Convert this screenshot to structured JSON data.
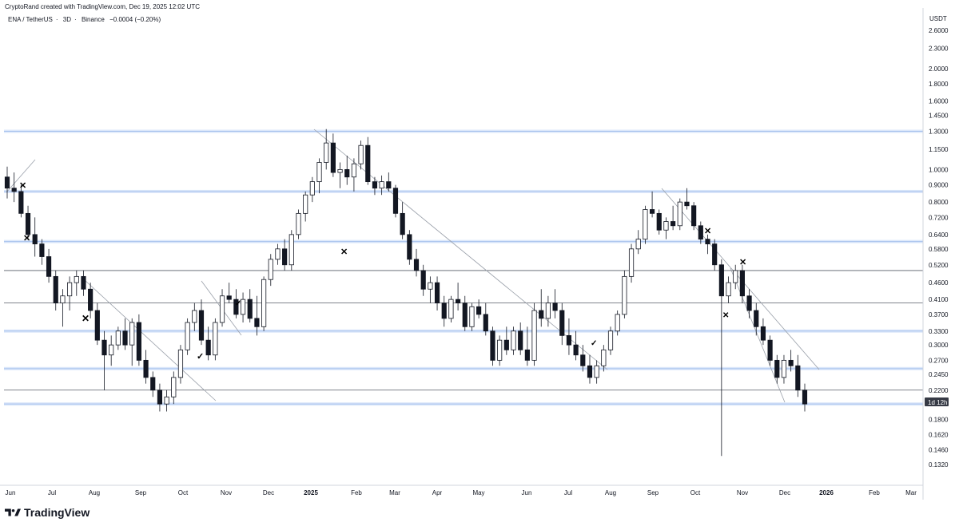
{
  "header": {
    "attribution": "CryptoRand created with TradingView.com, Dec 19, 2025 12:02 UTC",
    "pair": "ENA / TetherUS",
    "interval": "3D",
    "exchange": "Binance",
    "change": "−0.0004 (−0.20%)"
  },
  "axis": {
    "currency": "USDT",
    "countdown_badge": "1d 12h"
  },
  "brand": {
    "name": "TradingView"
  },
  "colors": {
    "up_candle": "#ffffff",
    "down_candle": "#131722",
    "level_line": "#a7c1ec",
    "level_glow": "#dbe7fa",
    "grey_line": "#555b66",
    "badge_bg": "#363a45"
  },
  "chart_data": {
    "type": "candlestick",
    "scale": "log",
    "ylim": [
      0.12,
      2.8
    ],
    "y_ticks": [
      "2.6000",
      "2.3000",
      "2.0000",
      "1.8000",
      "1.6000",
      "1.4500",
      "1.3000",
      "1.1500",
      "1.0000",
      "0.9000",
      "0.8000",
      "0.7200",
      "0.6400",
      "0.5800",
      "0.5200",
      "0.4600",
      "0.4100",
      "0.3700",
      "0.3300",
      "0.3000",
      "0.2700",
      "0.2450",
      "0.2200",
      "0.1800",
      "0.1620",
      "0.1460",
      "0.1320"
    ],
    "x_ticks": [
      "Jun",
      "Jul",
      "Aug",
      "Sep",
      "Oct",
      "Nov",
      "Dec",
      "2025",
      "Feb",
      "Mar",
      "Apr",
      "May",
      "Jun",
      "Jul",
      "Aug",
      "Sep",
      "Oct",
      "Nov",
      "Dec",
      "2026",
      "Feb",
      "Mar"
    ],
    "horizontal_levels_blue": [
      1.3,
      0.86,
      0.61,
      0.33,
      0.255,
      0.2
    ],
    "horizontal_levels_grey": [
      0.5,
      0.4,
      0.22
    ],
    "price_levels": [
      [
        0.95,
        1.02,
        0.82,
        0.88
      ],
      [
        0.88,
        0.98,
        0.8,
        0.86
      ],
      [
        0.86,
        0.9,
        0.72,
        0.74
      ],
      [
        0.74,
        0.78,
        0.62,
        0.64
      ],
      [
        0.64,
        0.72,
        0.55,
        0.6
      ],
      [
        0.6,
        0.62,
        0.52,
        0.55
      ],
      [
        0.55,
        0.58,
        0.46,
        0.48
      ],
      [
        0.48,
        0.5,
        0.38,
        0.4
      ],
      [
        0.4,
        0.44,
        0.34,
        0.42
      ],
      [
        0.42,
        0.48,
        0.38,
        0.46
      ],
      [
        0.46,
        0.5,
        0.42,
        0.48
      ],
      [
        0.48,
        0.5,
        0.42,
        0.44
      ],
      [
        0.44,
        0.46,
        0.36,
        0.38
      ],
      [
        0.38,
        0.4,
        0.3,
        0.31
      ],
      [
        0.31,
        0.33,
        0.22,
        0.28
      ],
      [
        0.28,
        0.32,
        0.26,
        0.3
      ],
      [
        0.3,
        0.34,
        0.29,
        0.33
      ],
      [
        0.33,
        0.36,
        0.29,
        0.3
      ],
      [
        0.3,
        0.36,
        0.26,
        0.35
      ],
      [
        0.35,
        0.37,
        0.26,
        0.27
      ],
      [
        0.27,
        0.29,
        0.23,
        0.24
      ],
      [
        0.24,
        0.25,
        0.21,
        0.22
      ],
      [
        0.22,
        0.23,
        0.19,
        0.2
      ],
      [
        0.2,
        0.22,
        0.19,
        0.21
      ],
      [
        0.21,
        0.25,
        0.2,
        0.24
      ],
      [
        0.24,
        0.3,
        0.23,
        0.29
      ],
      [
        0.29,
        0.36,
        0.28,
        0.35
      ],
      [
        0.35,
        0.4,
        0.33,
        0.38
      ],
      [
        0.38,
        0.41,
        0.3,
        0.31
      ],
      [
        0.31,
        0.34,
        0.27,
        0.28
      ],
      [
        0.28,
        0.36,
        0.27,
        0.35
      ],
      [
        0.35,
        0.44,
        0.34,
        0.42
      ],
      [
        0.42,
        0.46,
        0.4,
        0.41
      ],
      [
        0.41,
        0.44,
        0.36,
        0.37
      ],
      [
        0.37,
        0.43,
        0.35,
        0.41
      ],
      [
        0.41,
        0.44,
        0.35,
        0.36
      ],
      [
        0.36,
        0.42,
        0.32,
        0.34
      ],
      [
        0.34,
        0.48,
        0.33,
        0.47
      ],
      [
        0.47,
        0.56,
        0.45,
        0.54
      ],
      [
        0.54,
        0.6,
        0.52,
        0.58
      ],
      [
        0.58,
        0.62,
        0.5,
        0.52
      ],
      [
        0.52,
        0.66,
        0.5,
        0.64
      ],
      [
        0.64,
        0.76,
        0.62,
        0.74
      ],
      [
        0.74,
        0.86,
        0.7,
        0.84
      ],
      [
        0.84,
        0.95,
        0.8,
        0.92
      ],
      [
        0.92,
        1.08,
        0.85,
        1.05
      ],
      [
        1.05,
        1.32,
        1.0,
        1.2
      ],
      [
        1.2,
        1.28,
        0.95,
        0.98
      ],
      [
        0.98,
        1.05,
        0.88,
        1.0
      ],
      [
        1.0,
        1.1,
        0.9,
        0.95
      ],
      [
        0.95,
        1.08,
        0.86,
        1.04
      ],
      [
        1.04,
        1.22,
        1.0,
        1.18
      ],
      [
        1.18,
        1.25,
        0.9,
        0.92
      ],
      [
        0.92,
        0.95,
        0.84,
        0.88
      ],
      [
        0.88,
        0.96,
        0.84,
        0.92
      ],
      [
        0.92,
        0.98,
        0.86,
        0.88
      ],
      [
        0.88,
        0.9,
        0.72,
        0.74
      ],
      [
        0.74,
        0.8,
        0.62,
        0.64
      ],
      [
        0.64,
        0.66,
        0.52,
        0.54
      ],
      [
        0.54,
        0.58,
        0.48,
        0.5
      ],
      [
        0.5,
        0.52,
        0.42,
        0.44
      ],
      [
        0.44,
        0.48,
        0.4,
        0.46
      ],
      [
        0.46,
        0.48,
        0.38,
        0.4
      ],
      [
        0.4,
        0.42,
        0.34,
        0.36
      ],
      [
        0.36,
        0.42,
        0.35,
        0.41
      ],
      [
        0.41,
        0.46,
        0.38,
        0.4
      ],
      [
        0.4,
        0.42,
        0.33,
        0.34
      ],
      [
        0.34,
        0.4,
        0.33,
        0.39
      ],
      [
        0.39,
        0.41,
        0.36,
        0.37
      ],
      [
        0.37,
        0.4,
        0.32,
        0.33
      ],
      [
        0.33,
        0.34,
        0.26,
        0.27
      ],
      [
        0.27,
        0.32,
        0.26,
        0.31
      ],
      [
        0.31,
        0.34,
        0.28,
        0.29
      ],
      [
        0.29,
        0.34,
        0.28,
        0.33
      ],
      [
        0.33,
        0.35,
        0.28,
        0.29
      ],
      [
        0.29,
        0.34,
        0.26,
        0.27
      ],
      [
        0.27,
        0.4,
        0.26,
        0.38
      ],
      [
        0.38,
        0.44,
        0.34,
        0.36
      ],
      [
        0.36,
        0.42,
        0.34,
        0.4
      ],
      [
        0.4,
        0.44,
        0.36,
        0.38
      ],
      [
        0.38,
        0.4,
        0.3,
        0.32
      ],
      [
        0.32,
        0.36,
        0.28,
        0.3
      ],
      [
        0.3,
        0.33,
        0.27,
        0.28
      ],
      [
        0.28,
        0.3,
        0.25,
        0.26
      ],
      [
        0.26,
        0.28,
        0.23,
        0.24
      ],
      [
        0.24,
        0.27,
        0.23,
        0.26
      ],
      [
        0.26,
        0.3,
        0.25,
        0.29
      ],
      [
        0.29,
        0.34,
        0.28,
        0.33
      ],
      [
        0.33,
        0.38,
        0.32,
        0.37
      ],
      [
        0.37,
        0.5,
        0.36,
        0.48
      ],
      [
        0.48,
        0.6,
        0.46,
        0.58
      ],
      [
        0.58,
        0.66,
        0.56,
        0.62
      ],
      [
        0.62,
        0.78,
        0.6,
        0.76
      ],
      [
        0.76,
        0.86,
        0.72,
        0.74
      ],
      [
        0.74,
        0.76,
        0.64,
        0.66
      ],
      [
        0.66,
        0.72,
        0.62,
        0.7
      ],
      [
        0.7,
        0.78,
        0.66,
        0.68
      ],
      [
        0.68,
        0.82,
        0.66,
        0.8
      ],
      [
        0.8,
        0.88,
        0.76,
        0.78
      ],
      [
        0.78,
        0.8,
        0.66,
        0.68
      ],
      [
        0.68,
        0.7,
        0.6,
        0.62
      ],
      [
        0.62,
        0.64,
        0.56,
        0.6
      ],
      [
        0.6,
        0.62,
        0.5,
        0.52
      ],
      [
        0.52,
        0.54,
        0.14,
        0.42
      ],
      [
        0.42,
        0.48,
        0.4,
        0.46
      ],
      [
        0.46,
        0.52,
        0.44,
        0.5
      ],
      [
        0.5,
        0.52,
        0.4,
        0.42
      ],
      [
        0.42,
        0.44,
        0.36,
        0.38
      ],
      [
        0.38,
        0.4,
        0.32,
        0.34
      ],
      [
        0.34,
        0.36,
        0.3,
        0.31
      ],
      [
        0.31,
        0.32,
        0.26,
        0.27
      ],
      [
        0.27,
        0.28,
        0.23,
        0.24
      ],
      [
        0.24,
        0.28,
        0.23,
        0.27
      ],
      [
        0.27,
        0.29,
        0.25,
        0.26
      ],
      [
        0.26,
        0.28,
        0.21,
        0.22
      ],
      [
        0.22,
        0.23,
        0.19,
        0.2
      ]
    ],
    "annotations": {
      "cross_marks": 6,
      "check_marks": 3
    }
  }
}
